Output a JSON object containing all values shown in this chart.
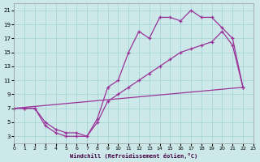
{
  "bg_color": "#cce8e8",
  "line_color": "#993399",
  "xlabel": "Windchill (Refroidissement éolien,°C)",
  "xlim": [
    0,
    23
  ],
  "ylim": [
    2,
    22
  ],
  "xticks": [
    0,
    1,
    2,
    3,
    4,
    5,
    6,
    7,
    8,
    9,
    10,
    11,
    12,
    13,
    14,
    15,
    16,
    17,
    18,
    19,
    20,
    21,
    22,
    23
  ],
  "yticks": [
    3,
    5,
    7,
    9,
    11,
    13,
    15,
    17,
    19,
    21
  ],
  "line1_x": [
    0,
    1,
    2,
    3,
    4,
    5,
    6,
    7,
    8,
    9,
    10,
    11,
    12,
    13,
    14,
    15,
    16,
    17,
    18,
    19,
    20,
    21,
    22
  ],
  "line1_y": [
    7,
    7,
    7,
    5,
    4,
    3.5,
    3.5,
    3,
    5.5,
    10,
    11,
    15,
    18,
    17,
    20,
    20,
    19.5,
    21,
    20,
    20,
    18.5,
    17,
    10
  ],
  "line2_x": [
    0,
    1,
    2,
    3,
    4,
    5,
    6,
    7,
    8,
    9,
    10,
    11,
    12,
    13,
    14,
    15,
    16,
    17,
    18,
    19,
    20,
    21,
    22
  ],
  "line2_y": [
    7,
    7,
    7,
    4.5,
    3.5,
    3,
    3,
    3,
    5,
    8,
    9,
    10,
    11,
    12,
    13,
    14,
    15,
    15.5,
    16,
    16.5,
    18,
    16,
    10
  ],
  "line3_x": [
    0,
    22
  ],
  "line3_y": [
    7,
    10
  ]
}
